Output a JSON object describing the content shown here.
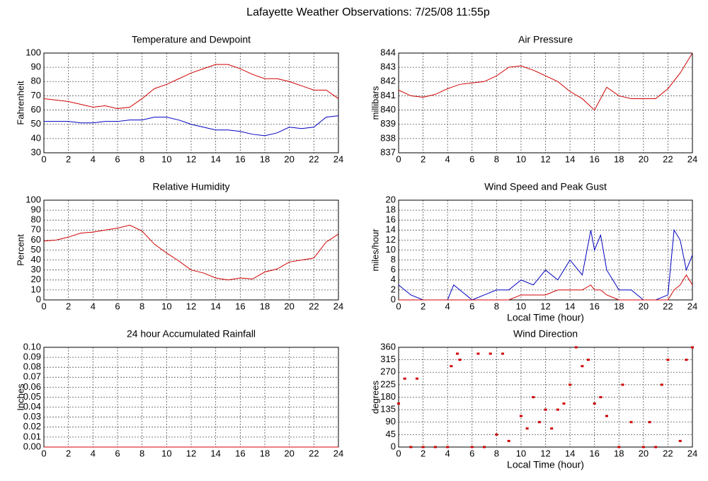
{
  "title": "Lafayette Weather Observations: 7/25/08 11:55p",
  "chart_data": [
    {
      "type": "line",
      "title": "Temperature and Dewpoint",
      "ylabel": "Fahrenheit",
      "grid": true,
      "x": [
        0,
        1,
        2,
        3,
        4,
        5,
        6,
        7,
        8,
        9,
        10,
        11,
        12,
        13,
        14,
        15,
        16,
        17,
        18,
        19,
        20,
        21,
        22,
        23,
        24
      ],
      "xlim": [
        0,
        24
      ],
      "xticks": [
        0,
        2,
        4,
        6,
        8,
        10,
        12,
        14,
        16,
        18,
        20,
        22,
        24
      ],
      "ylim": [
        30,
        100
      ],
      "yticks": [
        30,
        40,
        50,
        60,
        70,
        80,
        90,
        100
      ],
      "series": [
        {
          "color": "#d00000",
          "values": [
            68,
            67,
            66,
            64,
            62,
            63,
            61,
            62,
            68,
            75,
            78,
            82,
            86,
            89,
            92,
            92,
            89,
            85,
            82,
            82,
            80,
            77,
            74,
            74,
            68
          ]
        },
        {
          "color": "#0000c0",
          "values": [
            52,
            52,
            52,
            51,
            51,
            52,
            52,
            53,
            53,
            55,
            55,
            53,
            50,
            48,
            46,
            46,
            45,
            43,
            42,
            44,
            48,
            47,
            48,
            55,
            56
          ]
        }
      ]
    },
    {
      "type": "line",
      "title": "Air Pressure",
      "ylabel": "millibars",
      "grid": true,
      "x": [
        0,
        1,
        2,
        3,
        4,
        5,
        6,
        7,
        8,
        9,
        10,
        11,
        12,
        13,
        14,
        15,
        16,
        17,
        18,
        19,
        20,
        21,
        22,
        23,
        24
      ],
      "xlim": [
        0,
        24
      ],
      "xticks": [
        0,
        2,
        4,
        6,
        8,
        10,
        12,
        14,
        16,
        18,
        20,
        22,
        24
      ],
      "ylim": [
        837,
        844
      ],
      "yticks": [
        837,
        838,
        839,
        840,
        841,
        842,
        843,
        844
      ],
      "series": [
        {
          "color": "#d00000",
          "values": [
            841.4,
            841,
            840.9,
            841.1,
            841.5,
            841.8,
            841.9,
            842,
            842.4,
            843,
            843.1,
            842.8,
            842.4,
            842,
            841.3,
            840.8,
            840,
            841.6,
            841,
            840.8,
            840.8,
            840.8,
            841.5,
            842.6,
            844
          ]
        }
      ]
    },
    {
      "type": "line",
      "title": "Relative Humidity",
      "ylabel": "Percent",
      "grid": true,
      "x": [
        0,
        1,
        2,
        3,
        4,
        5,
        6,
        7,
        8,
        9,
        10,
        11,
        12,
        13,
        14,
        15,
        16,
        17,
        18,
        19,
        20,
        21,
        22,
        23,
        24
      ],
      "xlim": [
        0,
        24
      ],
      "xticks": [
        0,
        2,
        4,
        6,
        8,
        10,
        12,
        14,
        16,
        18,
        20,
        22,
        24
      ],
      "ylim": [
        0,
        100
      ],
      "yticks": [
        0,
        10,
        20,
        30,
        40,
        50,
        60,
        70,
        80,
        90,
        100
      ],
      "series": [
        {
          "color": "#d00000",
          "values": [
            59,
            60,
            63,
            67,
            68,
            70,
            72,
            75,
            69,
            56,
            47,
            39,
            30,
            27,
            22,
            20,
            22,
            21,
            28,
            31,
            38,
            40,
            42,
            58,
            66
          ]
        }
      ]
    },
    {
      "type": "line",
      "title": "Wind Speed and Peak Gust",
      "ylabel": "miles/hour",
      "xlabel": "Local Time (hour)",
      "grid": true,
      "x": [
        0,
        1,
        2,
        3,
        4,
        4.5,
        5,
        6,
        7,
        8,
        9,
        10,
        11,
        12,
        13,
        14,
        15,
        15.7,
        16,
        16.5,
        17,
        18,
        19,
        20,
        21,
        22,
        22.5,
        23,
        23.5,
        24
      ],
      "xlim": [
        0,
        24
      ],
      "xticks": [
        0,
        2,
        4,
        6,
        8,
        10,
        12,
        14,
        16,
        18,
        20,
        22,
        24
      ],
      "ylim": [
        0,
        20
      ],
      "yticks": [
        0,
        2,
        4,
        6,
        8,
        10,
        12,
        14,
        16,
        18,
        20
      ],
      "series": [
        {
          "color": "#0000c0",
          "values": [
            3,
            1,
            0,
            0,
            0,
            3,
            2,
            0,
            1,
            2,
            2,
            4,
            3,
            6,
            4,
            8,
            5,
            14,
            10,
            13,
            6,
            2,
            2,
            0,
            0,
            1,
            14,
            12,
            6,
            9
          ]
        },
        {
          "color": "#d00000",
          "values": [
            0,
            0,
            0,
            0,
            0,
            0,
            0,
            0,
            0,
            0,
            0,
            1,
            1,
            1,
            2,
            2,
            2,
            3,
            2,
            2,
            1,
            0,
            0,
            0,
            0,
            0,
            2,
            3,
            5,
            3
          ]
        }
      ]
    },
    {
      "type": "line",
      "title": "24 hour Accumulated Rainfall",
      "ylabel": "Inches",
      "grid": true,
      "x": [
        0,
        24
      ],
      "xlim": [
        0,
        24
      ],
      "xticks": [
        0,
        2,
        4,
        6,
        8,
        10,
        12,
        14,
        16,
        18,
        20,
        22,
        24
      ],
      "ylim": [
        0,
        0.1
      ],
      "yticks": [
        {
          "value": 0,
          "label": "0.00"
        },
        {
          "value": 0.01,
          "label": "0.01"
        },
        {
          "value": 0.02,
          "label": "0.02"
        },
        {
          "value": 0.03,
          "label": "0.03"
        },
        {
          "value": 0.04,
          "label": "0.04"
        },
        {
          "value": 0.05,
          "label": "0.05"
        },
        {
          "value": 0.06,
          "label": "0.06"
        },
        {
          "value": 0.07,
          "label": "0.07"
        },
        {
          "value": 0.08,
          "label": "0.08"
        },
        {
          "value": 0.09,
          "label": "0.09"
        },
        {
          "value": 0.1,
          "label": "0.10"
        }
      ],
      "series": [
        {
          "color": "#d00000",
          "values": [
            0,
            0
          ]
        }
      ]
    },
    {
      "type": "scatter",
      "title": "Wind Direction",
      "ylabel": "degrees",
      "xlabel": "Local Time (hour)",
      "grid": true,
      "x": [
        0,
        0.5,
        1,
        1.5,
        2,
        3,
        4,
        4.3,
        4.8,
        5,
        6,
        6.5,
        7,
        7.5,
        8,
        8.5,
        9,
        10,
        10.5,
        11,
        11.5,
        12,
        12.5,
        13,
        13.5,
        14,
        14.5,
        15,
        15.5,
        16,
        16.5,
        17,
        18,
        18.3,
        19,
        20,
        20.5,
        21,
        21.5,
        22,
        23,
        23.5,
        24
      ],
      "xlim": [
        0,
        24
      ],
      "xticks": [
        0,
        2,
        4,
        6,
        8,
        10,
        12,
        14,
        16,
        18,
        20,
        22,
        24
      ],
      "ylim": [
        0,
        360
      ],
      "yticks": [
        0,
        45,
        90,
        135,
        180,
        225,
        270,
        315,
        360
      ],
      "series": [
        {
          "color": "#d00000",
          "values": [
            157,
            247,
            0,
            247,
            0,
            0,
            0,
            292,
            337,
            315,
            0,
            337,
            0,
            337,
            45,
            337,
            22,
            112,
            67,
            180,
            90,
            135,
            67,
            135,
            157,
            225,
            360,
            292,
            315,
            157,
            180,
            112,
            0,
            225,
            90,
            0,
            90,
            0,
            225,
            315,
            22,
            315,
            360
          ]
        }
      ]
    }
  ]
}
